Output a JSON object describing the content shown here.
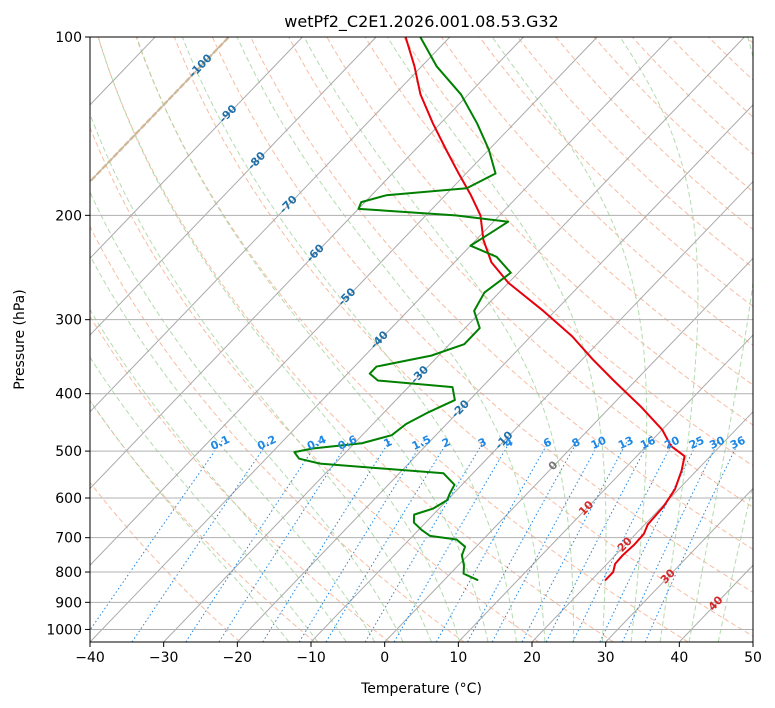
{
  "chart_data": {
    "type": "line",
    "title": "wetPf2_C2E1.2026.001.08.53.G32",
    "xlabel": "Temperature (°C)",
    "ylabel": "Pressure (hPa)",
    "xlim": [
      -40,
      50
    ],
    "ylim": [
      1050,
      100
    ],
    "y_scale": "log",
    "skew": true,
    "grid": true,
    "x_ticks": [
      "−40",
      "−30",
      "−20",
      "−10",
      "0",
      "10",
      "20",
      "30",
      "40",
      "50"
    ],
    "y_ticks": [
      "100",
      "200",
      "300",
      "400",
      "500",
      "600",
      "700",
      "800",
      "900",
      "1000"
    ],
    "x_tick_values": [
      -40,
      -30,
      -20,
      -10,
      0,
      10,
      20,
      30,
      40,
      50
    ],
    "y_tick_values": [
      100,
      200,
      300,
      400,
      500,
      600,
      700,
      800,
      900,
      1000
    ],
    "colors": {
      "temperature": "#e8000b",
      "dewpoint": "#008000",
      "isotherm": "#aaaaaa",
      "dry_adiabat": "#f4a582",
      "moist_adiabat": "#a6d5a0",
      "mixing_ratio": "#1e88e5",
      "thick_isotherm": "#d2b48c",
      "label_neg": "#1f6fa8",
      "label_pos": "#d62728",
      "label_zero": "#777777",
      "label_mixing": "#1e88e5"
    },
    "series": [
      {
        "role": "temperature",
        "points": [
          {
            "p": 825,
            "t": 21.9
          },
          {
            "p": 800,
            "t": 21.9
          },
          {
            "p": 775,
            "t": 21.1
          },
          {
            "p": 750,
            "t": 21.0
          },
          {
            "p": 720,
            "t": 21.2
          },
          {
            "p": 690,
            "t": 21.1
          },
          {
            "p": 665,
            "t": 20.4
          },
          {
            "p": 620,
            "t": 20.2
          },
          {
            "p": 580,
            "t": 19.5
          },
          {
            "p": 540,
            "t": 18.0
          },
          {
            "p": 510,
            "t": 16.5
          },
          {
            "p": 490,
            "t": 13.3
          },
          {
            "p": 460,
            "t": 10.0
          },
          {
            "p": 420,
            "t": 4.0
          },
          {
            "p": 380,
            "t": -3.0
          },
          {
            "p": 350,
            "t": -8.6
          },
          {
            "p": 320,
            "t": -14.4
          },
          {
            "p": 290,
            "t": -21.6
          },
          {
            "p": 260,
            "t": -30.0
          },
          {
            "p": 240,
            "t": -35.0
          },
          {
            "p": 220,
            "t": -39.0
          },
          {
            "p": 200,
            "t": -42.6
          },
          {
            "p": 185,
            "t": -46.5
          },
          {
            "p": 170,
            "t": -51.0
          },
          {
            "p": 155,
            "t": -55.8
          },
          {
            "p": 140,
            "t": -61.0
          },
          {
            "p": 125,
            "t": -66.5
          },
          {
            "p": 112,
            "t": -71.0
          },
          {
            "p": 100,
            "t": -76.0
          }
        ]
      },
      {
        "role": "dewpoint",
        "points": [
          {
            "p": 825,
            "t": 4.5
          },
          {
            "p": 805,
            "t": 1.8
          },
          {
            "p": 780,
            "t": 0.8
          },
          {
            "p": 750,
            "t": -0.8
          },
          {
            "p": 725,
            "t": -1.5
          },
          {
            "p": 705,
            "t": -3.6
          },
          {
            "p": 695,
            "t": -7.7
          },
          {
            "p": 680,
            "t": -9.5
          },
          {
            "p": 660,
            "t": -11.6
          },
          {
            "p": 640,
            "t": -12.6
          },
          {
            "p": 625,
            "t": -10.8
          },
          {
            "p": 605,
            "t": -10.0
          },
          {
            "p": 590,
            "t": -10.5
          },
          {
            "p": 570,
            "t": -11.0
          },
          {
            "p": 545,
            "t": -14.0
          },
          {
            "p": 525,
            "t": -32.0
          },
          {
            "p": 515,
            "t": -35.5
          },
          {
            "p": 502,
            "t": -37.0
          },
          {
            "p": 495,
            "t": -35.0
          },
          {
            "p": 485,
            "t": -29.0
          },
          {
            "p": 470,
            "t": -26.0
          },
          {
            "p": 450,
            "t": -25.5
          },
          {
            "p": 430,
            "t": -24.0
          },
          {
            "p": 410,
            "t": -22.0
          },
          {
            "p": 390,
            "t": -24.0
          },
          {
            "p": 380,
            "t": -35.0
          },
          {
            "p": 370,
            "t": -37.0
          },
          {
            "p": 360,
            "t": -37.0
          },
          {
            "p": 345,
            "t": -31.0
          },
          {
            "p": 330,
            "t": -28.0
          },
          {
            "p": 310,
            "t": -28.0
          },
          {
            "p": 290,
            "t": -31.0
          },
          {
            "p": 270,
            "t": -32.0
          },
          {
            "p": 250,
            "t": -31.0
          },
          {
            "p": 235,
            "t": -35.0
          },
          {
            "p": 225,
            "t": -40.0
          },
          {
            "p": 215,
            "t": -39.0
          },
          {
            "p": 205,
            "t": -38.0
          },
          {
            "p": 200,
            "t": -46.0
          },
          {
            "p": 195,
            "t": -60.0
          },
          {
            "p": 190,
            "t": -60.5
          },
          {
            "p": 185,
            "t": -58.0
          },
          {
            "p": 180,
            "t": -48.0
          },
          {
            "p": 170,
            "t": -46.0
          },
          {
            "p": 155,
            "t": -50.0
          },
          {
            "p": 140,
            "t": -55.0
          },
          {
            "p": 125,
            "t": -61.0
          },
          {
            "p": 112,
            "t": -68.0
          },
          {
            "p": 100,
            "t": -74.0
          }
        ]
      }
    ],
    "mixing_ratio_labels": [
      "0.1",
      "0.2",
      "0.4",
      "0.6",
      "1",
      "1.5",
      "2",
      "3",
      "4",
      "6",
      "8",
      "10",
      "13",
      "16",
      "20",
      "25",
      "30",
      "36"
    ],
    "mixing_ratio_values": [
      0.1,
      0.2,
      0.4,
      0.6,
      1,
      1.5,
      2,
      3,
      4,
      6,
      8,
      10,
      13,
      16,
      20,
      25,
      30,
      36
    ],
    "isotherm_labels": [
      {
        "text": "-100",
        "t": -100,
        "p": 112
      },
      {
        "text": "-90",
        "t": -90,
        "p": 135
      },
      {
        "text": "-80",
        "t": -80,
        "p": 162
      },
      {
        "text": "-70",
        "t": -70,
        "p": 192
      },
      {
        "text": "-60",
        "t": -60,
        "p": 232
      },
      {
        "text": "-50",
        "t": -50,
        "p": 275
      },
      {
        "text": "-40",
        "t": -40,
        "p": 325
      },
      {
        "text": "-30",
        "t": -30,
        "p": 372
      },
      {
        "text": "-20",
        "t": -20,
        "p": 425
      },
      {
        "text": "-10",
        "t": -10,
        "p": 480
      },
      {
        "text": "0",
        "t": 0,
        "p": 530
      },
      {
        "text": "10",
        "t": 10,
        "p": 625
      },
      {
        "text": "20",
        "t": 20,
        "p": 720
      },
      {
        "text": "30",
        "t": 30,
        "p": 815
      },
      {
        "text": "40",
        "t": 40,
        "p": 905
      }
    ]
  }
}
